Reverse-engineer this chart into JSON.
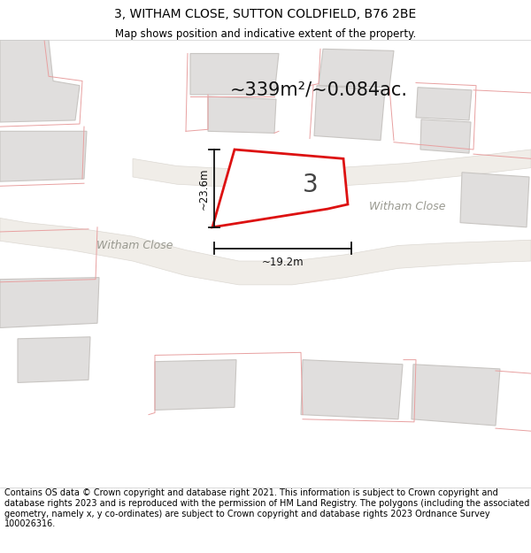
{
  "title": "3, WITHAM CLOSE, SUTTON COLDFIELD, B76 2BE",
  "subtitle": "Map shows position and indicative extent of the property.",
  "area_text": "~339m²/~0.084ac.",
  "number_label": "3",
  "dim_width": "~19.2m",
  "dim_height": "~23.6m",
  "road_label": "Witham Close",
  "road_label2": "Witham Close",
  "bg_color": "#f8f8f6",
  "map_bg": "#f8f8f6",
  "building_fill": "#e0dedd",
  "building_stroke": "#c8c5c2",
  "highlight_fill": "#ffffff",
  "highlight_stroke": "#dd1111",
  "road_fill": "#eeece8",
  "road_stroke": "#d8d5d0",
  "red_line_color": "#e8a0a0",
  "footer_text": "Contains OS data © Crown copyright and database right 2021. This information is subject to Crown copyright and database rights 2023 and is reproduced with the permission of HM Land Registry. The polygons (including the associated geometry, namely x, y co-ordinates) are subject to Crown copyright and database rights 2023 Ordnance Survey 100026316.",
  "title_fontsize": 10,
  "subtitle_fontsize": 8.5,
  "footer_fontsize": 7.0
}
